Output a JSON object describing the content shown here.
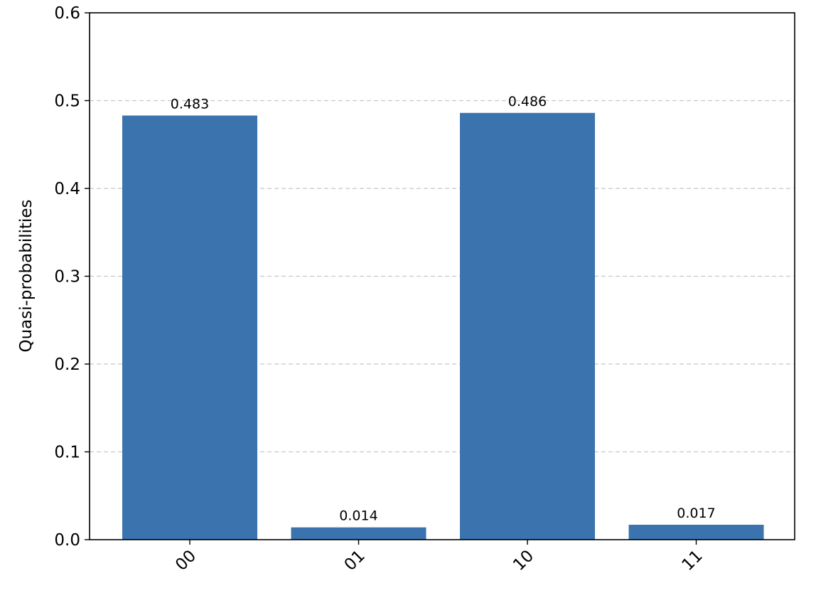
{
  "chart_data": {
    "type": "bar",
    "categories": [
      "00",
      "01",
      "10",
      "11"
    ],
    "values": [
      0.483,
      0.014,
      0.486,
      0.017
    ],
    "value_labels": [
      "0.483",
      "0.014",
      "0.486",
      "0.017"
    ],
    "ylabel": "Quasi-probabilities",
    "xlabel": "",
    "ylim": [
      0,
      0.6
    ],
    "yticks": [
      0.0,
      0.1,
      0.2,
      0.3,
      0.4,
      0.5,
      0.6
    ],
    "ytick_labels": [
      "0.0",
      "0.1",
      "0.2",
      "0.3",
      "0.4",
      "0.5",
      "0.6"
    ],
    "grid": "y-dashed",
    "bar_color": "#3a73ad",
    "grid_color": "#c8c8c8",
    "xtick_rotation_deg": 45
  }
}
